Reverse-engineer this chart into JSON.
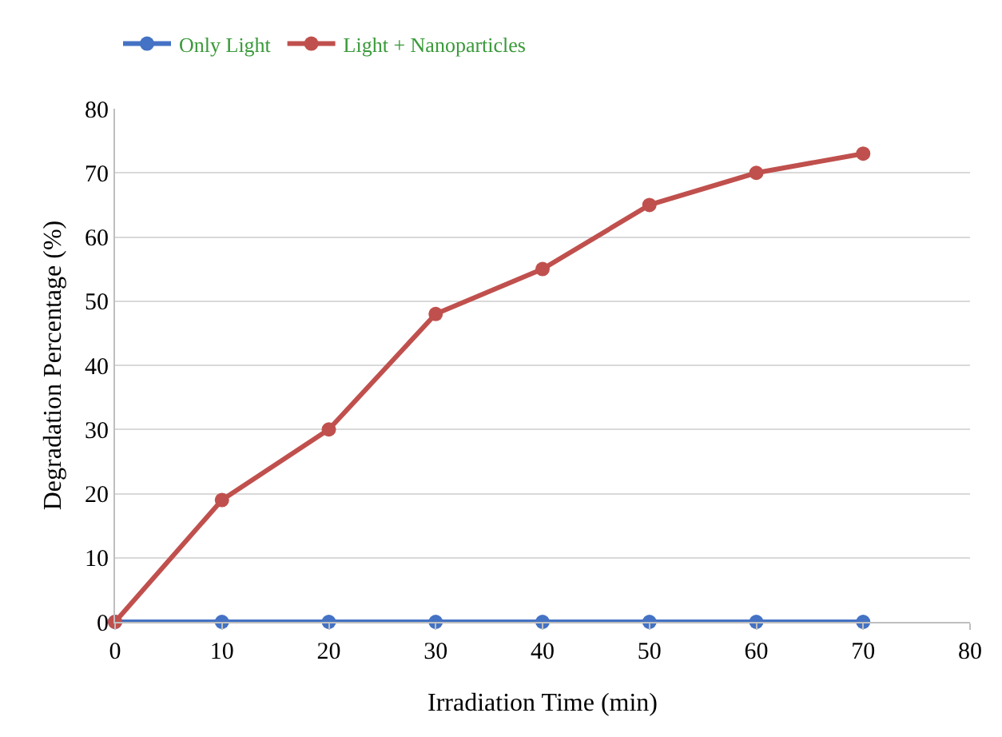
{
  "chart_data": {
    "type": "line",
    "xlabel": "Irradiation Time (min)",
    "ylabel": "Degradation Percentage (%)",
    "x": [
      0,
      10,
      20,
      30,
      40,
      50,
      60,
      70
    ],
    "series": [
      {
        "name": "Only Light",
        "color": "#4472c4",
        "values": [
          0,
          0,
          0,
          0,
          0,
          0,
          0,
          0
        ]
      },
      {
        "name": "Light + Nanoparticles",
        "color": "#c0504d",
        "values": [
          0,
          19,
          30,
          48,
          55,
          65,
          70,
          73
        ]
      }
    ],
    "xlim": [
      0,
      80
    ],
    "xticks": [
      0,
      10,
      20,
      30,
      40,
      50,
      60,
      70,
      80
    ],
    "ylim": [
      0,
      80
    ],
    "yticks": [
      0,
      10,
      20,
      30,
      40,
      50,
      60,
      70,
      80
    ],
    "grid": "y",
    "legend": "top left",
    "marker": "circle",
    "line_style": "solid"
  }
}
